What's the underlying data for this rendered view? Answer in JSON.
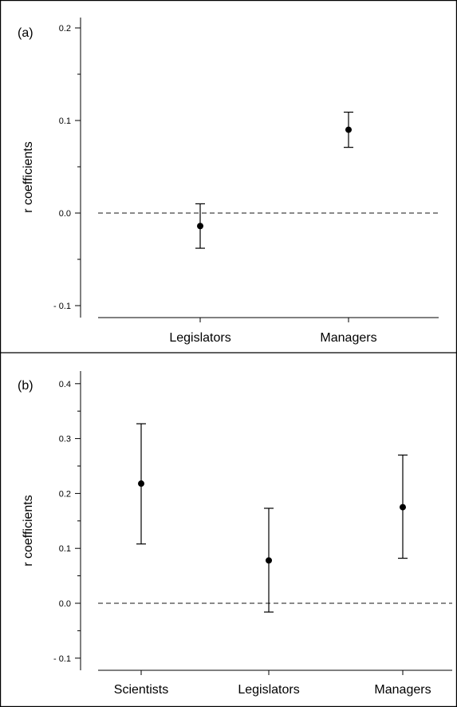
{
  "chart_data": [
    {
      "type": "scatter",
      "panel_label": "(a)",
      "ylabel": "r coefficients",
      "ylim": [
        -0.11,
        0.2
      ],
      "yticks": [
        -0.1,
        0.0,
        0.1,
        0.2
      ],
      "ytick_labels": [
        "- 0.1",
        "0.0",
        "0.1",
        "0.2"
      ],
      "categories": [
        "Legislators",
        "Managers"
      ],
      "points": [
        {
          "category": "Legislators",
          "value": -0.014,
          "lower": -0.038,
          "upper": 0.01
        },
        {
          "category": "Managers",
          "value": 0.09,
          "lower": 0.071,
          "upper": 0.109
        }
      ],
      "reference_line": 0.0
    },
    {
      "type": "scatter",
      "panel_label": "(b)",
      "ylabel": "r coefficients",
      "ylim": [
        -0.11,
        0.4
      ],
      "yticks": [
        -0.1,
        0.0,
        0.1,
        0.2,
        0.3,
        0.4
      ],
      "ytick_labels": [
        "- 0.1",
        "0.0",
        "0.1",
        "0.2",
        "0.3",
        "0.4"
      ],
      "categories": [
        "Scientists",
        "Legislators",
        "Managers"
      ],
      "points": [
        {
          "category": "Scientists",
          "value": 0.218,
          "lower": 0.108,
          "upper": 0.327
        },
        {
          "category": "Legislators",
          "value": 0.078,
          "lower": -0.016,
          "upper": 0.173
        },
        {
          "category": "Managers",
          "value": 0.175,
          "lower": 0.082,
          "upper": 0.27
        }
      ],
      "reference_line": 0.0
    }
  ]
}
